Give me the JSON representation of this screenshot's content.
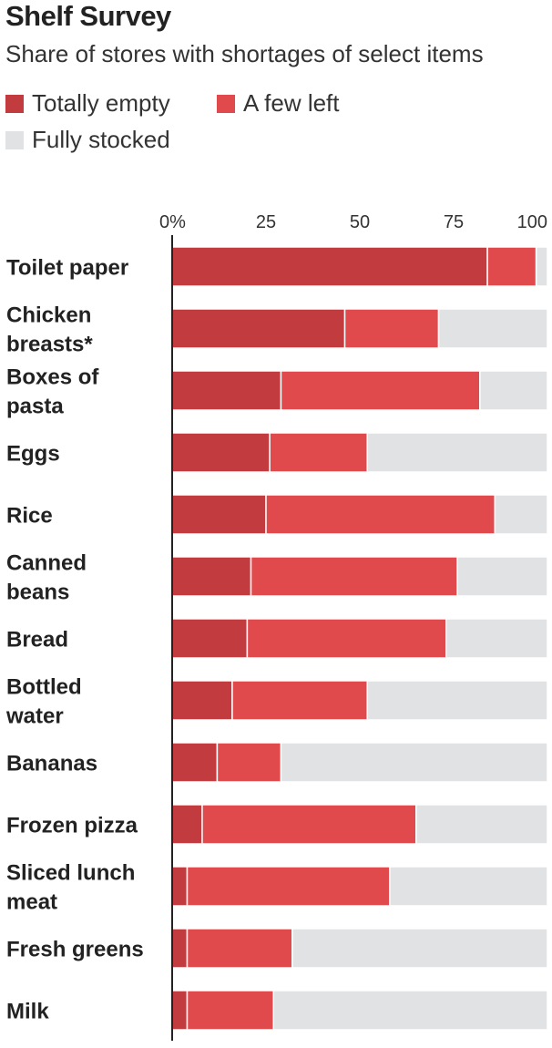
{
  "title": "Shelf Survey",
  "subtitle": "Share of stores with shortages of select items",
  "colors": {
    "totally_empty": "#c23b3f",
    "a_few_left": "#e04a4d",
    "fully_stocked": "#e1e2e4",
    "axis": "#222222"
  },
  "chart_data": {
    "type": "bar",
    "orientation": "horizontal",
    "stacked": true,
    "title": "Shelf Survey",
    "subtitle": "Share of stores with shortages of select items",
    "xlim": [
      0,
      100
    ],
    "ticks": [
      0,
      25,
      50,
      75,
      100
    ],
    "tick_labels": [
      "0%",
      "25",
      "50",
      "75",
      "100"
    ],
    "legend_placement": "top-left",
    "categories": [
      [
        "Toilet paper"
      ],
      [
        "Chicken",
        "breasts*"
      ],
      [
        "Boxes of",
        "pasta"
      ],
      [
        "Eggs"
      ],
      [
        "Rice"
      ],
      [
        "Canned",
        "beans"
      ],
      [
        "Bread"
      ],
      [
        "Bottled",
        "water"
      ],
      [
        "Bananas"
      ],
      [
        "Frozen pizza"
      ],
      [
        "Sliced lunch",
        "meat"
      ],
      [
        "Fresh greens"
      ],
      [
        "Milk"
      ]
    ],
    "series": [
      {
        "name": "Totally empty",
        "values": [
          84,
          46,
          29,
          26,
          25,
          21,
          20,
          16,
          12,
          8,
          4,
          4,
          4
        ]
      },
      {
        "name": "A few left",
        "values": [
          13,
          25,
          53,
          26,
          61,
          55,
          53,
          36,
          17,
          57,
          54,
          28,
          23
        ]
      },
      {
        "name": "Fully stocked",
        "values": [
          3,
          29,
          18,
          48,
          14,
          24,
          27,
          48,
          71,
          35,
          42,
          68,
          73
        ]
      }
    ]
  }
}
